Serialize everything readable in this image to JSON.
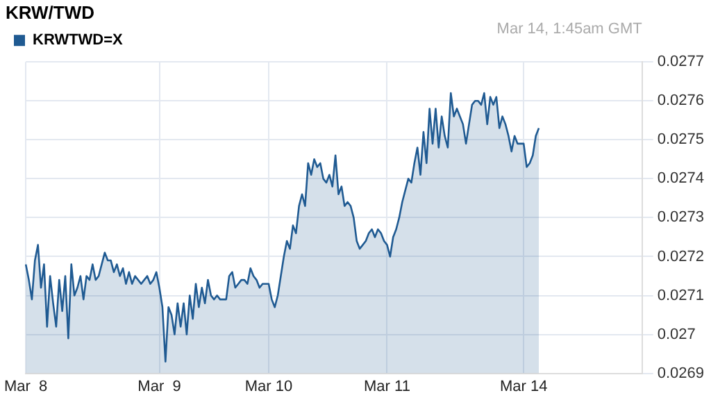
{
  "chart_data": {
    "type": "area",
    "title": "KRW/TWD",
    "annotations": [
      "Mar 14, 1:45am GMT"
    ],
    "legend": "top left",
    "grid": true,
    "marker": "none",
    "categories": [
      "Mar  8",
      null,
      null,
      null,
      null,
      null,
      null,
      null,
      null,
      null,
      null,
      null,
      null,
      null,
      null,
      null,
      null,
      null,
      null,
      null,
      null,
      null,
      null,
      null,
      null,
      null,
      null,
      null,
      null,
      null,
      null,
      null,
      null,
      null,
      null,
      null,
      null,
      null,
      null,
      null,
      null,
      null,
      null,
      null,
      "Mar  9",
      null,
      null,
      null,
      null,
      null,
      null,
      null,
      null,
      null,
      null,
      null,
      null,
      null,
      null,
      null,
      null,
      null,
      null,
      null,
      null,
      null,
      null,
      null,
      null,
      null,
      null,
      null,
      null,
      null,
      null,
      null,
      null,
      null,
      null,
      null,
      "Mar 10",
      null,
      null,
      null,
      null,
      null,
      null,
      null,
      null,
      null,
      null,
      null,
      null,
      null,
      null,
      null,
      null,
      null,
      null,
      null,
      null,
      null,
      null,
      null,
      null,
      null,
      null,
      null,
      null,
      null,
      null,
      null,
      null,
      null,
      null,
      null,
      null,
      null,
      null,
      "Mar 11",
      null,
      null,
      null,
      null,
      null,
      null,
      null,
      null,
      null,
      null,
      null,
      null,
      null,
      null,
      null,
      null,
      null,
      null,
      null,
      null,
      null,
      null,
      null,
      null,
      null,
      null,
      null,
      null,
      null,
      null,
      null,
      null,
      null,
      null,
      null,
      null,
      null,
      null,
      null,
      null,
      null,
      null,
      null,
      null,
      "Mar 14",
      null,
      null,
      null,
      null,
      null,
      null,
      null,
      null,
      null,
      null,
      null,
      null,
      null,
      null,
      null,
      null,
      null,
      null,
      null,
      null,
      null,
      null,
      null,
      null,
      null,
      null,
      null,
      null,
      null,
      null,
      null,
      null,
      null,
      null,
      null,
      null,
      null,
      null,
      null
    ],
    "ylim": [
      0.0269,
      0.0277
    ],
    "yticks": [
      0.0269,
      0.027,
      0.0271,
      0.0272,
      0.0273,
      0.0274,
      0.0275,
      0.0276,
      0.0277
    ],
    "series": [
      {
        "name": "KRWTWD=X",
        "color": "#1f5a92",
        "values": [
          0.02718,
          0.02714,
          0.02709,
          0.02719,
          0.02723,
          0.02712,
          0.02718,
          0.02702,
          0.02715,
          0.02708,
          0.02702,
          0.02714,
          0.02706,
          0.02715,
          0.02699,
          0.02718,
          0.0271,
          0.02712,
          0.02715,
          0.02709,
          0.02715,
          0.02714,
          0.02718,
          0.02714,
          0.02715,
          0.02718,
          0.02721,
          0.02719,
          0.02719,
          0.02716,
          0.02718,
          0.02715,
          0.02717,
          0.02713,
          0.02716,
          0.02713,
          0.02715,
          0.02714,
          0.02713,
          0.02714,
          0.02715,
          0.02713,
          0.02714,
          0.02716,
          0.02712,
          0.02707,
          0.02693,
          0.02707,
          0.02705,
          0.027,
          0.02708,
          0.02702,
          0.02708,
          0.027,
          0.0271,
          0.02704,
          0.02713,
          0.02707,
          0.02712,
          0.02708,
          0.02714,
          0.0271,
          0.02709,
          0.0271,
          0.02709,
          0.02709,
          0.02709,
          0.02715,
          0.02716,
          0.02712,
          0.02713,
          0.02714,
          0.02714,
          0.02713,
          0.02717,
          0.02715,
          0.02714,
          0.02712,
          0.02713,
          0.02713,
          0.02713,
          0.02709,
          0.02707,
          0.0271,
          0.02715,
          0.0272,
          0.02724,
          0.02722,
          0.02728,
          0.02726,
          0.02733,
          0.02736,
          0.02733,
          0.02744,
          0.02741,
          0.02745,
          0.02743,
          0.02744,
          0.0274,
          0.02739,
          0.02741,
          0.02738,
          0.02746,
          0.02736,
          0.02738,
          0.02733,
          0.02734,
          0.02733,
          0.0273,
          0.02724,
          0.02722,
          0.02723,
          0.02724,
          0.02726,
          0.02727,
          0.02725,
          0.02727,
          0.02726,
          0.02724,
          0.02723,
          0.0272,
          0.02725,
          0.02727,
          0.0273,
          0.02734,
          0.02737,
          0.0274,
          0.02739,
          0.02744,
          0.02748,
          0.02741,
          0.02752,
          0.02744,
          0.02758,
          0.02749,
          0.02758,
          0.02748,
          0.02756,
          0.02751,
          0.02748,
          0.02762,
          0.02756,
          0.02758,
          0.02756,
          0.02754,
          0.02749,
          0.02754,
          0.02759,
          0.0276,
          0.0276,
          0.02759,
          0.02762,
          0.02754,
          0.02761,
          0.02759,
          0.02761,
          0.02753,
          0.02756,
          0.02754,
          0.02751,
          0.02747,
          0.02751,
          0.02749,
          0.02749,
          0.02749,
          0.02743,
          0.02744,
          0.02746,
          0.02751,
          0.02753,
          null,
          null,
          null,
          null,
          null,
          null,
          null,
          null,
          null,
          null,
          null,
          null,
          null,
          null,
          null,
          null,
          null,
          null,
          null,
          null,
          null,
          null,
          null,
          null,
          null,
          null,
          null,
          null,
          null,
          null,
          null,
          null,
          null,
          null
        ]
      }
    ]
  }
}
